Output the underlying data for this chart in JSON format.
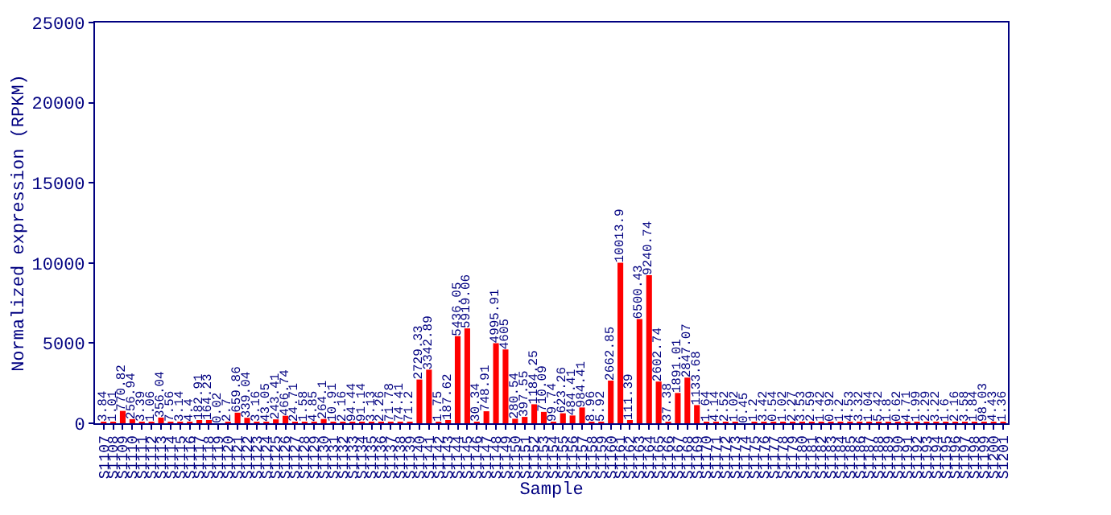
{
  "chart_data": {
    "type": "bar",
    "xlabel": "Sample",
    "ylabel": "Normalized expression (RPKM)",
    "categories": [
      "S1107",
      "S1108",
      "S1109",
      "S1110",
      "S1111",
      "S1112",
      "S1113",
      "S1114",
      "S1115",
      "S1116",
      "S1117",
      "S1118",
      "S1119",
      "S1120",
      "S1121",
      "S1122",
      "S1123",
      "S1124",
      "S1125",
      "S1126",
      "S1127",
      "S1128",
      "S1129",
      "S1130",
      "S1131",
      "S1132",
      "S1133",
      "S1134",
      "S1135",
      "S1136",
      "S1137",
      "S1138",
      "S1139",
      "S1140",
      "S1141",
      "S1142",
      "S1143",
      "S1144",
      "S1145",
      "S1146",
      "S1147",
      "S1148",
      "S1149",
      "S1150",
      "S1151",
      "S1152",
      "S1153",
      "S1154",
      "S1155",
      "S1156",
      "S1157",
      "S1158",
      "S1159",
      "S1160",
      "S1161",
      "S1162",
      "S1163",
      "S1164",
      "S1165",
      "S1166",
      "S1167",
      "S1168",
      "S1169",
      "S1170",
      "S1171",
      "S1172",
      "S1173",
      "S1174",
      "S1175",
      "S1176",
      "S1177",
      "S1178",
      "S1179",
      "S1180",
      "S1181",
      "S1182",
      "S1183",
      "S1184",
      "S1185",
      "S1186",
      "S1187",
      "S1188",
      "S1189",
      "S1190",
      "S1191",
      "S1192",
      "S1193",
      "S1194",
      "S1195",
      "S1196",
      "S1197",
      "S1198",
      "S1199",
      "S1200",
      "S1201"
    ],
    "values": [
      3.84,
      1.01,
      770.82,
      256.94,
      3.39,
      1.06,
      356.04,
      7.56,
      3.14,
      4.4,
      182.91,
      164.23,
      0.02,
      2.7,
      659.86,
      339.04,
      3.16,
      43.05,
      243.41,
      466.74,
      24.71,
      1.58,
      4.85,
      264.1,
      10.91,
      2.16,
      94.44,
      91.14,
      3.13,
      2.26,
      71.78,
      74.41,
      71.2,
      2729.33,
      3342.89,
      1.75,
      187.62,
      5436.05,
      5919.06,
      30.34,
      748.91,
      4995.91,
      4605,
      280.54,
      397.55,
      1184.25,
      710.09,
      99.74,
      623.26,
      484.41,
      984.41,
      8.96,
      5.92,
      2662.85,
      10013.9,
      111.39,
      6500.43,
      9240.74,
      2602.74,
      37.38,
      1891.01,
      2847.07,
      1133.68,
      1.64,
      4.14,
      2.52,
      1.02,
      0.45,
      1.2,
      3.42,
      0.54,
      1.02,
      2.27,
      3.53,
      2.59,
      1.42,
      0.92,
      1.2,
      4.53,
      3.32,
      1.04,
      5.42,
      1.8,
      0.62,
      4.71,
      1.99,
      2.29,
      3.22,
      1.6,
      2.16,
      3.58,
      1.84,
      98.03,
      4.43,
      1.36
    ],
    "color": "#ff0000",
    "ylim": [
      0,
      25000
    ],
    "yticks": [
      0,
      5000,
      10000,
      15000,
      20000,
      25000
    ],
    "data_labels": true
  }
}
